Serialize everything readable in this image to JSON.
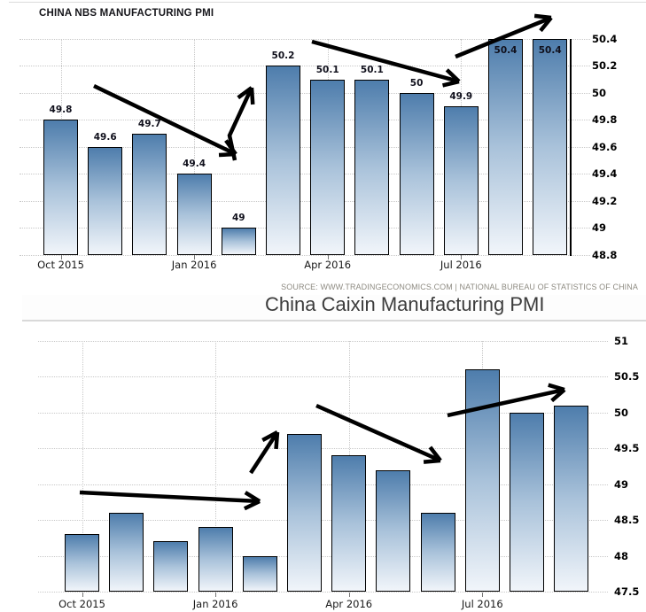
{
  "styles": {
    "background": "#ffffff",
    "bar_gradient_top": "#4e7dac",
    "bar_gradient_mid": "#a9c2da",
    "bar_gradient_bottom": "#f1f5fa",
    "bar_border": "#000000",
    "gridline": "#c8c8c8",
    "axis_line": "#000000",
    "arrow": "#000000",
    "nbs_title_color": "#15151a",
    "caixin_title_color": "#3c3c3c",
    "source_color": "#8e8b82"
  },
  "chart_data": [
    {
      "type": "bar",
      "title": "CHINA NBS MANUFACTURING PMI",
      "source": "SOURCE: WWW.TRADINGECONOMICS.COM | NATIONAL BUREAU OF STATISTICS OF CHINA",
      "values": [
        49.8,
        49.6,
        49.7,
        49.4,
        49,
        50.2,
        50.1,
        50.1,
        50,
        49.9,
        50.4,
        50.4
      ],
      "value_labels": [
        "49.8",
        "49.6",
        "49.7",
        "49.4",
        "49",
        "50.2",
        "50.1",
        "50.1",
        "50",
        "49.9",
        "50.4",
        "50.4"
      ],
      "xticks": [
        {
          "bar_index": 0,
          "label": "Oct 2015"
        },
        {
          "bar_index": 3,
          "label": "Jan 2016"
        },
        {
          "bar_index": 6,
          "label": "Apr 2016"
        },
        {
          "bar_index": 9,
          "label": "Jul 2016"
        }
      ],
      "yticks": [
        "50.4",
        "50.2",
        "50",
        "49.8",
        "49.6",
        "49.4",
        "49.2",
        "49",
        "48.8"
      ],
      "ylim": [
        48.8,
        50.4
      ],
      "ytick_step": 0.2,
      "grid": true,
      "y_axis_side": "right",
      "legend": null,
      "annotations": [
        {
          "kind": "trend-arrow-down",
          "points": [
            [
              106,
              97
            ],
            [
              266,
              174
            ]
          ]
        },
        {
          "kind": "trend-arrow-up",
          "points": [
            [
              265,
              181
            ],
            [
              259,
              153
            ],
            [
              284,
              99
            ]
          ]
        },
        {
          "kind": "trend-arrow-down",
          "points": [
            [
              352,
              47
            ],
            [
              518,
              92
            ]
          ]
        },
        {
          "kind": "trend-arrow-up",
          "points": [
            [
              514,
              64
            ],
            [
              622,
              20
            ]
          ]
        }
      ]
    },
    {
      "type": "bar",
      "title": "China Caixin Manufacturing PMI",
      "source": null,
      "values": [
        48.3,
        48.6,
        48.2,
        48.4,
        48,
        49.7,
        49.4,
        49.2,
        48.6,
        50.6,
        50,
        50.1
      ],
      "value_labels": null,
      "xticks": [
        {
          "bar_index": 0,
          "label": "Oct 2015"
        },
        {
          "bar_index": 3,
          "label": "Jan 2016"
        },
        {
          "bar_index": 6,
          "label": "Apr 2016"
        },
        {
          "bar_index": 9,
          "label": "Jul 2016"
        }
      ],
      "yticks": [
        "51",
        "50.5",
        "50",
        "49.5",
        "49",
        "48.5",
        "48",
        "47.5"
      ],
      "ylim": [
        47.5,
        51
      ],
      "ytick_step": 0.5,
      "grid": true,
      "y_axis_side": "right",
      "legend": null,
      "annotations": [
        {
          "kind": "trend-arrow-flat",
          "points": [
            [
              90,
              556
            ],
            [
              293,
              566
            ]
          ]
        },
        {
          "kind": "trend-arrow-up",
          "points": [
            [
              283,
              534
            ],
            [
              313,
              488
            ]
          ]
        },
        {
          "kind": "trend-arrow-down",
          "points": [
            [
              357,
              458
            ],
            [
              497,
              520
            ]
          ]
        },
        {
          "kind": "trend-arrow-up",
          "points": [
            [
              505,
              469
            ],
            [
              637,
              440
            ]
          ]
        }
      ]
    }
  ]
}
